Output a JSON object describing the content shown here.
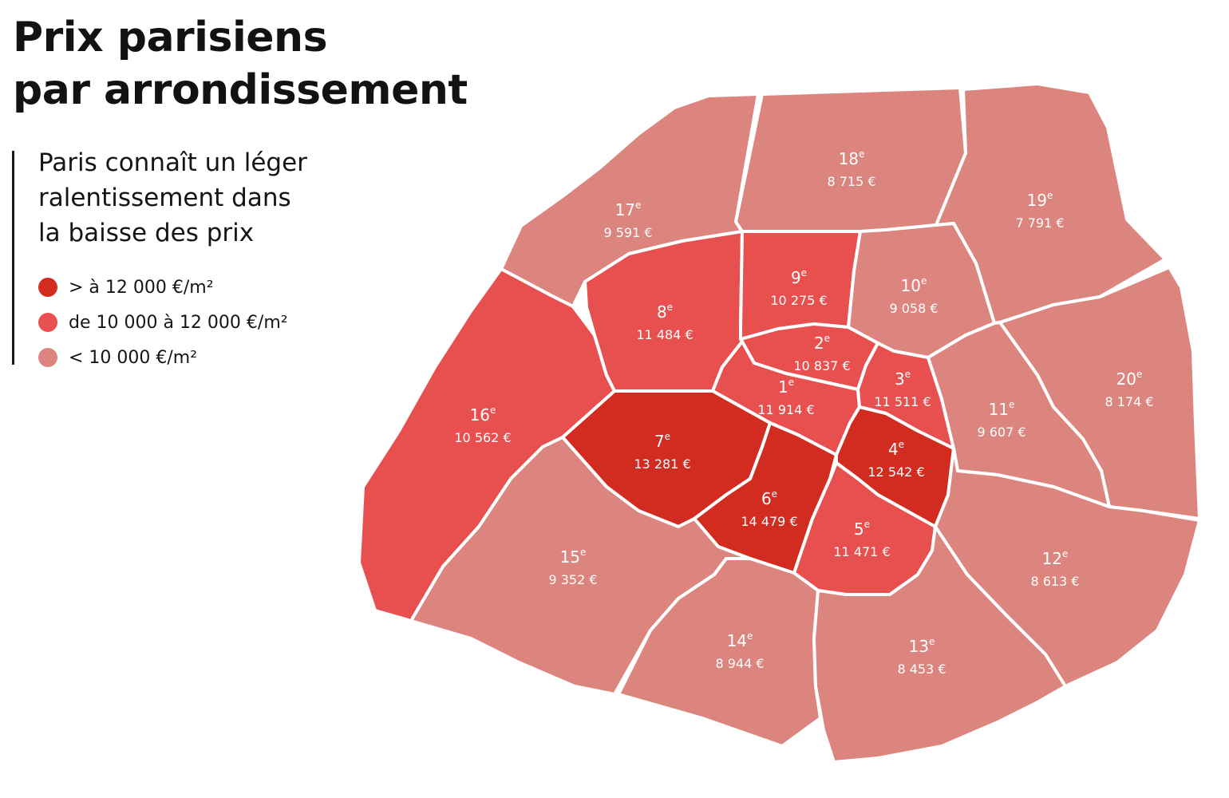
{
  "header": {
    "title_line1": "Prix parisiens",
    "title_line2": "par arrondissement",
    "subtitle_line1": "Paris connaît un léger",
    "subtitle_line2": "ralentissement dans",
    "subtitle_line3": "la baisse des prix"
  },
  "legend": [
    {
      "label": "> à 12 000 €/m²",
      "color": "#d22b20",
      "tier": "high"
    },
    {
      "label": "de 10 000 à 12 000 €/m²",
      "color": "#e85050",
      "tier": "mid"
    },
    {
      "label": "< 10 000 €/m²",
      "color": "#dc847e",
      "tier": "low"
    }
  ],
  "map": {
    "superscript": "e",
    "districts": [
      {
        "id": "1",
        "number": "1",
        "price": "11 914 €",
        "tier": "mid"
      },
      {
        "id": "2",
        "number": "2",
        "price": "10 837 €",
        "tier": "mid"
      },
      {
        "id": "3",
        "number": "3",
        "price": "11 511 €",
        "tier": "mid"
      },
      {
        "id": "4",
        "number": "4",
        "price": "12 542 €",
        "tier": "high"
      },
      {
        "id": "5",
        "number": "5",
        "price": "11 471 €",
        "tier": "mid"
      },
      {
        "id": "6",
        "number": "6",
        "price": "14 479 €",
        "tier": "high"
      },
      {
        "id": "7",
        "number": "7",
        "price": "13 281 €",
        "tier": "high"
      },
      {
        "id": "8",
        "number": "8",
        "price": "11 484 €",
        "tier": "mid"
      },
      {
        "id": "9",
        "number": "9",
        "price": "10 275 €",
        "tier": "mid"
      },
      {
        "id": "10",
        "number": "10",
        "price": "9 058 €",
        "tier": "low"
      },
      {
        "id": "11",
        "number": "11",
        "price": "9 607 €",
        "tier": "low"
      },
      {
        "id": "12",
        "number": "12",
        "price": "8 613 €",
        "tier": "low"
      },
      {
        "id": "13",
        "number": "13",
        "price": "8 453 €",
        "tier": "low"
      },
      {
        "id": "14",
        "number": "14",
        "price": "8 944 €",
        "tier": "low"
      },
      {
        "id": "15",
        "number": "15",
        "price": "9 352 €",
        "tier": "low"
      },
      {
        "id": "16",
        "number": "16",
        "price": "10 562 €",
        "tier": "mid"
      },
      {
        "id": "17",
        "number": "17",
        "price": "9 591 €",
        "tier": "low"
      },
      {
        "id": "18",
        "number": "18",
        "price": "8 715 €",
        "tier": "low"
      },
      {
        "id": "19",
        "number": "19",
        "price": "7 791 €",
        "tier": "low"
      },
      {
        "id": "20",
        "number": "20",
        "price": "8 174 €",
        "tier": "low"
      }
    ]
  }
}
